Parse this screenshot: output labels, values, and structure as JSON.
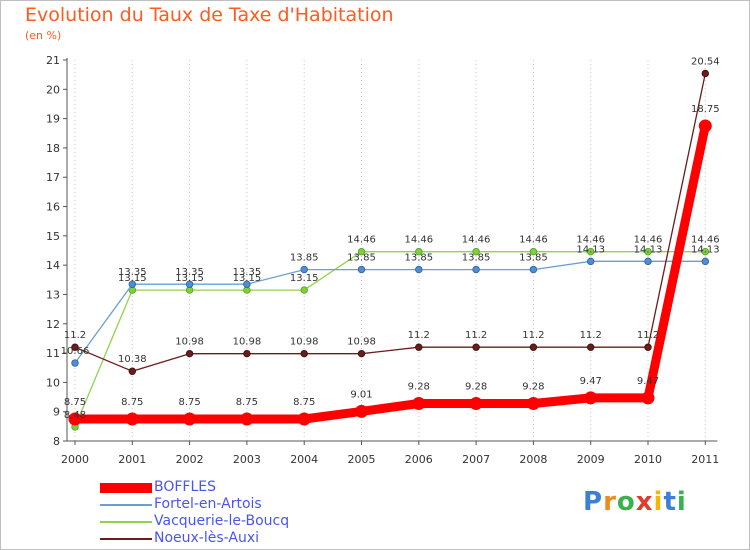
{
  "header": {
    "title": "Evolution du Taux de Taxe d'Habitation",
    "subtitle": "(en %)"
  },
  "logo": {
    "letters": [
      "P",
      "r",
      "o",
      "x",
      "i",
      "t",
      "i"
    ],
    "colors": [
      "#3b7fd9",
      "#f08a1e",
      "#39b24a",
      "#e23b2e",
      "#f5b800",
      "#3b7fd9",
      "#39b24a"
    ]
  },
  "chart_data": {
    "type": "line",
    "title": "Evolution du Taux de Taxe d'Habitation",
    "subtitle": "(en %)",
    "xlabel": "",
    "ylabel": "",
    "x": [
      "2000",
      "2001",
      "2002",
      "2003",
      "2004",
      "2005",
      "2006",
      "2007",
      "2008",
      "2009",
      "2010",
      "2011"
    ],
    "ylim": [
      8,
      21
    ],
    "yticks": [
      "8",
      "9",
      "10",
      "11",
      "12",
      "13",
      "14",
      "15",
      "16",
      "17",
      "18",
      "19",
      "20",
      "21"
    ],
    "grid": "vertical-dotted",
    "legend_position": "bottom-left",
    "series": [
      {
        "name": "BOFFLES",
        "color": "#ff0000",
        "values": [
          8.75,
          8.75,
          8.75,
          8.75,
          8.75,
          9.01,
          9.28,
          9.28,
          9.28,
          9.47,
          9.47,
          18.75
        ],
        "labels": [
          "8.75",
          "8.75",
          "8.75",
          "8.75",
          "8.75",
          "9.01",
          "9.28",
          "9.28",
          "9.28",
          "9.47",
          "9.47",
          "18.75"
        ]
      },
      {
        "name": "Fortel-en-Artois",
        "color": "#6a9fd4",
        "values": [
          10.66,
          13.35,
          13.35,
          13.35,
          13.85,
          13.85,
          13.85,
          13.85,
          13.85,
          14.13,
          14.13,
          14.13
        ],
        "labels": [
          "10.66",
          "13.35",
          "13.35",
          "13.35",
          "13.85",
          "13.85",
          "13.85",
          "13.85",
          "13.85",
          "14.13",
          "14.13",
          "14.13"
        ]
      },
      {
        "name": "Vacquerie-le-Boucq",
        "color": "#8fd44a",
        "values": [
          8.48,
          13.15,
          13.15,
          13.15,
          13.15,
          14.46,
          14.46,
          14.46,
          14.46,
          14.46,
          14.46,
          14.46
        ],
        "labels": [
          "8.48",
          "13.15",
          "13.15",
          "13.15",
          "13.15",
          "14.46",
          "14.46",
          "14.46",
          "14.46",
          "14.46",
          "14.46",
          "14.46"
        ]
      },
      {
        "name": "Noeux-lès-Auxi",
        "color": "#6b1c1c",
        "values": [
          11.2,
          10.38,
          10.98,
          10.98,
          10.98,
          10.98,
          11.2,
          11.2,
          11.2,
          11.2,
          11.2,
          20.54
        ],
        "labels": [
          "11.2",
          "10.38",
          "10.98",
          "10.98",
          "10.98",
          "10.98",
          "11.2",
          "11.2",
          "11.2",
          "11.2",
          "11.2",
          "20.54"
        ]
      }
    ]
  }
}
